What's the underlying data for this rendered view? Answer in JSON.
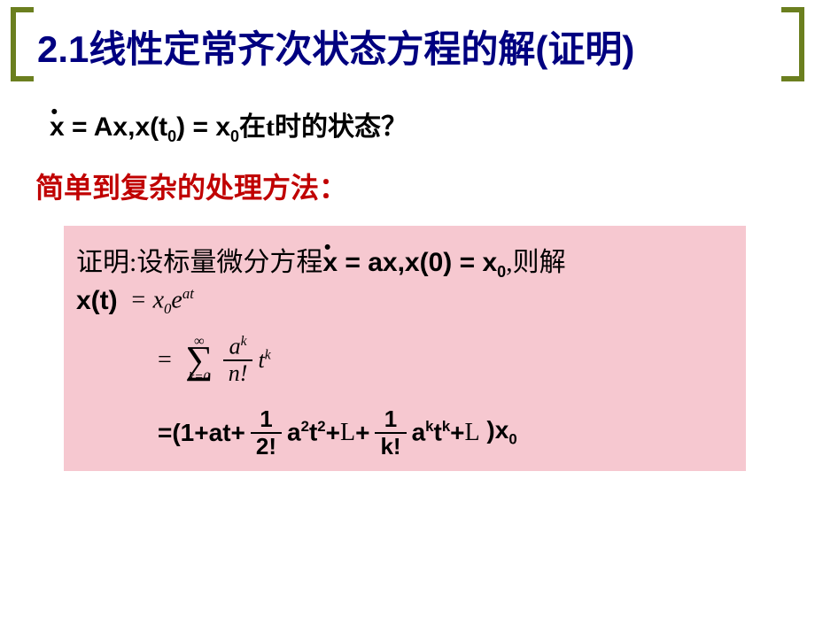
{
  "colors": {
    "bracket": "#6b7f1f",
    "title": "#000080",
    "subtitle": "#c00000",
    "proof_bg": "#f6c8d0",
    "text": "#000000"
  },
  "title": "2.1线性定常齐次状态方程的解(证明)",
  "equation1": {
    "lhs_x": "x",
    "eq": " = ",
    "Ax": "Ax,",
    "xt0": "x(t",
    "sub0": "0",
    "close": ")",
    "eq2": " = ",
    "x0": "x",
    "sub0b": "0",
    "cn_tail": "在t时的状态？"
  },
  "subtitle": "简单到复杂的处理方法：",
  "proof": {
    "line1_cn": "证明:设标量微分方程",
    "line1_eq_x": "x",
    "line1_eq_mid": " = ax,x(0) = x",
    "line1_sub0": "0",
    "line1_tail": ",则解",
    "xt": "x(t)",
    "rhs1_eq": "=",
    "rhs1_x0": " x",
    "rhs1_sub0": "0",
    "rhs1_e": "e",
    "rhs1_exp": "at",
    "sum": {
      "eq": "=",
      "top": "∞",
      "bottom": "k=0",
      "num": "a",
      "num_sup": "k",
      "den": "n!",
      "t": "t",
      "t_sup": "k"
    },
    "series": {
      "eq": "=",
      "open": "(1",
      "plus": " + ",
      "at": "at",
      "f1_num": "1",
      "f1_den": "2!",
      "a2t2_a": "a",
      "a2t2_a_sup": "2",
      "a2t2_t": "t",
      "a2t2_t_sup": "2",
      "ldots": "L",
      "fk_num": "1",
      "fk_den": "k!",
      "aktk_a": "a",
      "aktk_a_sup": "k",
      "aktk_t": "t",
      "aktk_t_sup": "k",
      "close": ")x",
      "close_sub": "0"
    }
  }
}
